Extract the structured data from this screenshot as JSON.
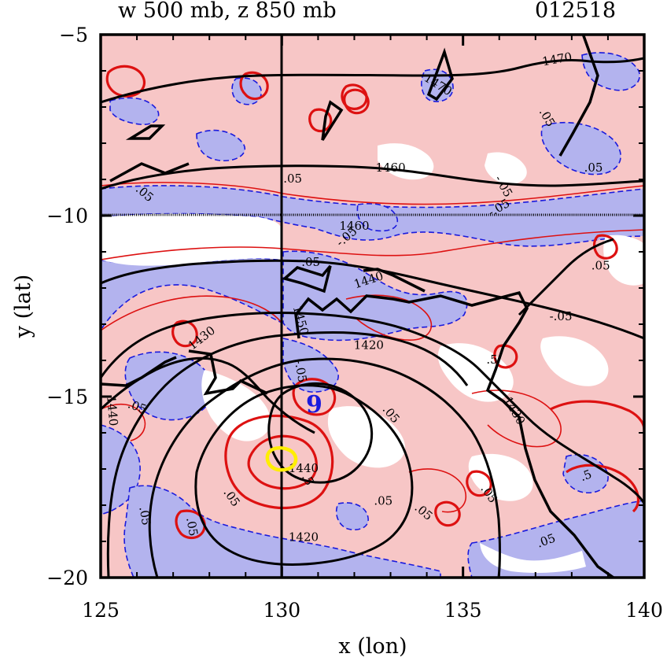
{
  "chart_data": {
    "type": "contour",
    "title_left": "w 500 mb, z 850 mb",
    "title_right": "012518",
    "xlabel": "x (lon)",
    "ylabel": "y (lat)",
    "xlim": [
      125,
      140
    ],
    "ylim": [
      -20,
      -5
    ],
    "xticks": [
      125,
      130,
      135,
      140
    ],
    "yticks": [
      -20,
      -15,
      -10,
      -5
    ],
    "xtick_labels": [
      "125",
      "130",
      "135",
      "140"
    ],
    "ytick_labels": [
      "−20",
      "−15",
      "−10",
      "−5"
    ],
    "reference_lines": {
      "lon": 130,
      "lat": -10
    },
    "shading": {
      "positive_color": "#f7c6c6",
      "negative_color": "#b3b3ee",
      "positive_contour_color": "#dd1111",
      "negative_contour_color": "#1a1add"
    },
    "height_contours": [
      {
        "value": 1470,
        "label": "1470"
      },
      {
        "value": 1460,
        "label": "1460"
      },
      {
        "value": 1440,
        "label": "1440"
      },
      {
        "value": 1430,
        "label": "1430"
      },
      {
        "value": 1420,
        "label": "1420"
      }
    ],
    "omega_labels": [
      ".05",
      "-.05",
      ".5"
    ],
    "inline_labels": [
      {
        "text": "1470",
        "lon": 137.6,
        "lat": -5.7,
        "rot": -10
      },
      {
        "text": "1470",
        "lon": 134.3,
        "lat": -6.4,
        "rot": 32
      },
      {
        "text": "1460",
        "lon": 133.0,
        "lat": -8.7,
        "rot": 0
      },
      {
        "text": "1460",
        "lon": 132.0,
        "lat": -10.3,
        "rot": 0
      },
      {
        "text": "1440",
        "lon": 132.4,
        "lat": -11.8,
        "rot": -18
      },
      {
        "text": "1430",
        "lon": 127.8,
        "lat": -13.4,
        "rot": -38
      },
      {
        "text": "1430",
        "lon": 136.4,
        "lat": -15.4,
        "rot": 60
      },
      {
        "text": "1420",
        "lon": 132.4,
        "lat": -13.6,
        "rot": 0
      },
      {
        "text": "1420",
        "lon": 130.6,
        "lat": -18.9,
        "rot": 0
      },
      {
        "text": "1440",
        "lon": 125.3,
        "lat": -15.4,
        "rot": 85
      },
      {
        "text": "1440",
        "lon": 130.6,
        "lat": -17.0,
        "rot": 0
      },
      {
        "text": "1450",
        "lon": 130.5,
        "lat": -12.9,
        "rot": 75
      },
      {
        "text": ".05",
        "lon": 130.3,
        "lat": -9.0,
        "rot": 0
      },
      {
        "text": ".05",
        "lon": 130.8,
        "lat": -11.3,
        "rot": 0
      },
      {
        "text": ".05",
        "lon": 133.0,
        "lat": -15.5,
        "rot": 50
      },
      {
        "text": ".05",
        "lon": 132.8,
        "lat": -17.9,
        "rot": 0
      },
      {
        "text": ".05",
        "lon": 133.9,
        "lat": -18.2,
        "rot": 40
      },
      {
        "text": ".05",
        "lon": 128.6,
        "lat": -17.8,
        "rot": 55
      },
      {
        "text": ".05",
        "lon": 126.2,
        "lat": -18.3,
        "rot": 80
      },
      {
        "text": ".05",
        "lon": 127.5,
        "lat": -18.6,
        "rot": 80
      },
      {
        "text": ".05",
        "lon": 126.0,
        "lat": -15.3,
        "rot": 20
      },
      {
        "text": ".05",
        "lon": 135.7,
        "lat": -17.7,
        "rot": 55
      },
      {
        "text": ".05",
        "lon": 137.3,
        "lat": -19.0,
        "rot": -20
      },
      {
        "text": ".05",
        "lon": 138.8,
        "lat": -11.4,
        "rot": 0
      },
      {
        "text": ".05",
        "lon": 138.6,
        "lat": -8.7,
        "rot": 0
      },
      {
        "text": ".05",
        "lon": 137.3,
        "lat": -7.3,
        "rot": 60
      },
      {
        "text": "-.05",
        "lon": 136.0,
        "lat": -9.8,
        "rot": -30
      },
      {
        "text": "-.05",
        "lon": 131.8,
        "lat": -10.6,
        "rot": -40
      },
      {
        "text": "-.05",
        "lon": 130.5,
        "lat": -14.3,
        "rot": 80
      },
      {
        "text": "-.05",
        "lon": 137.7,
        "lat": -12.8,
        "rot": 0
      },
      {
        "text": "-.05",
        "lon": 136.1,
        "lat": -9.2,
        "rot": 60
      },
      {
        "text": ".5",
        "lon": 135.8,
        "lat": -14.0,
        "rot": 0
      },
      {
        "text": ".5",
        "lon": 138.4,
        "lat": -17.2,
        "rot": -20
      },
      {
        "text": ".5",
        "lon": 130.7,
        "lat": -17.3,
        "rot": 60
      },
      {
        "text": ".05",
        "lon": 126.2,
        "lat": -9.4,
        "rot": 40
      }
    ],
    "markers": [
      {
        "kind": "storm-symbol",
        "lon": 130.9,
        "lat": -15.1,
        "color": "#1a1add"
      },
      {
        "kind": "yellow-loop",
        "lon": 130.0,
        "lat": -16.8,
        "color": "#ffff00"
      }
    ],
    "grid": false
  }
}
